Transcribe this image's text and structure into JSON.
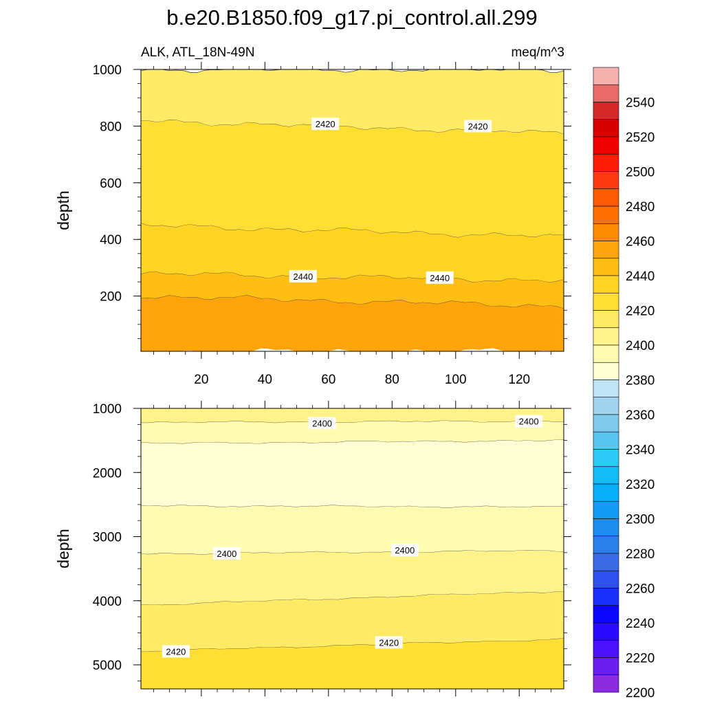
{
  "title": "b.e20.B1850.f09_g17.pi_control.all.299",
  "subtitle_left": "ALK, ATL_18N-49N",
  "subtitle_right": "meq/m^3",
  "colors": {
    "levels": [
      2200,
      2210,
      2220,
      2230,
      2240,
      2250,
      2260,
      2270,
      2280,
      2290,
      2300,
      2310,
      2320,
      2330,
      2340,
      2350,
      2360,
      2370,
      2380,
      2390,
      2400,
      2410,
      2420,
      2430,
      2440,
      2450,
      2460,
      2470,
      2480,
      2490,
      2500,
      2510,
      2520,
      2530,
      2540,
      2550
    ],
    "fills": [
      "#8a2be2",
      "#6a1ef0",
      "#4b12ff",
      "#2a0dff",
      "#0a06ff",
      "#1b2fff",
      "#3050ee",
      "#3b6be6",
      "#2b7fe8",
      "#1d8ef0",
      "#139bf8",
      "#08aef8",
      "#12bdf5",
      "#2ec8f5",
      "#58c4f0",
      "#7fcaeb",
      "#a2d4ee",
      "#bfe4f5",
      "#fffed4",
      "#fffbb0",
      "#fff38a",
      "#ffea66",
      "#ffdf33",
      "#ffd424",
      "#ffbe14",
      "#ffa40a",
      "#ff8c00",
      "#ff7000",
      "#ff5a00",
      "#ff3b14",
      "#ff1e0a",
      "#f00000",
      "#d90000",
      "#d52a2a",
      "#e86a6a",
      "#f5b0b0"
    ]
  },
  "chart_data": [
    {
      "type": "contour",
      "panel": "top",
      "xlabel": "",
      "ylabel": "depth",
      "xlim": [
        1,
        134
      ],
      "ylim": [
        1000,
        5
      ],
      "x_ticks": [
        20,
        40,
        60,
        80,
        100,
        120
      ],
      "x_tick_labels": [
        "20",
        "40",
        "60",
        "80",
        "100",
        "120"
      ],
      "y_ticks": [
        200,
        400,
        600,
        800,
        1000
      ],
      "y_tick_labels": [
        "200",
        "400",
        "600",
        "800",
        "1000"
      ],
      "bands": [
        {
          "value": 2450,
          "upper_depth": [
            5,
            5
          ],
          "lower_depth": [
            200,
            165
          ]
        },
        {
          "value": 2440,
          "upper_depth": [
            200,
            165
          ],
          "lower_depth": [
            280,
            255
          ]
        },
        {
          "value": 2430,
          "upper_depth": [
            280,
            255
          ],
          "lower_depth": [
            450,
            410
          ]
        },
        {
          "value": 2420,
          "upper_depth": [
            450,
            410
          ],
          "lower_depth": [
            820,
            775
          ]
        },
        {
          "value": 2410,
          "upper_depth": [
            820,
            775
          ],
          "lower_depth": [
            1000,
            1000
          ]
        }
      ],
      "contour_labels": [
        {
          "text": "2440",
          "x": 52,
          "depth": 270
        },
        {
          "text": "2440",
          "x": 95,
          "depth": 265
        },
        {
          "text": "2420",
          "x": 59,
          "depth": 808
        },
        {
          "text": "2420",
          "x": 107,
          "depth": 800
        }
      ]
    },
    {
      "type": "contour",
      "panel": "bottom",
      "xlabel": "",
      "ylabel": "depth",
      "xlim": [
        1,
        134
      ],
      "ylim": [
        1000,
        5375
      ],
      "x_ticks": [
        20,
        40,
        60,
        80,
        100,
        120
      ],
      "x_tick_labels": [],
      "y_ticks": [
        1000,
        2000,
        3000,
        4000,
        5000
      ],
      "y_tick_labels": [
        "1000",
        "2000",
        "3000",
        "4000",
        "5000"
      ],
      "bands": [
        {
          "value": 2400,
          "upper_depth": [
            1000,
            1000
          ],
          "lower_depth": [
            1220,
            1200
          ]
        },
        {
          "value": 2390,
          "upper_depth": [
            1220,
            1200
          ],
          "lower_depth": [
            1550,
            1500
          ]
        },
        {
          "value": 2380,
          "upper_depth": [
            1550,
            1500
          ],
          "lower_depth": [
            2520,
            2540
          ]
        },
        {
          "value": 2390,
          "upper_depth": [
            2520,
            2540
          ],
          "lower_depth": [
            3270,
            3220
          ]
        },
        {
          "value": 2400,
          "upper_depth": [
            3270,
            3220
          ],
          "lower_depth": [
            4070,
            3850
          ]
        },
        {
          "value": 2410,
          "upper_depth": [
            4070,
            3850
          ],
          "lower_depth": [
            4790,
            4600
          ]
        },
        {
          "value": 2420,
          "upper_depth": [
            4790,
            4600
          ],
          "lower_depth": [
            5375,
            5375
          ]
        }
      ],
      "contour_labels": [
        {
          "text": "2400",
          "x": 58,
          "depth": 1230
        },
        {
          "text": "2400",
          "x": 123,
          "depth": 1200
        },
        {
          "text": "2400",
          "x": 28,
          "depth": 3260
        },
        {
          "text": "2400",
          "x": 84,
          "depth": 3210
        },
        {
          "text": "2420",
          "x": 12,
          "depth": 4790
        },
        {
          "text": "2420",
          "x": 79,
          "depth": 4650
        }
      ]
    }
  ],
  "colorbar": {
    "labels": [
      "2540",
      "2520",
      "2500",
      "2480",
      "2460",
      "2440",
      "2420",
      "2400",
      "2380",
      "2360",
      "2340",
      "2320",
      "2300",
      "2280",
      "2260",
      "2240",
      "2220",
      "2200"
    ]
  }
}
